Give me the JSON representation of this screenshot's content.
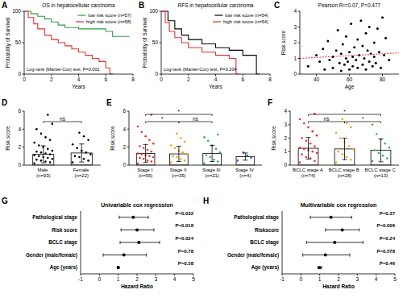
{
  "chart_data": [
    {
      "type": "line",
      "panel_label": "A",
      "title": "OS in hepatocellular carcinoma",
      "x_label": "Years",
      "y_label": "Probability of Survival",
      "line_style": "step",
      "legend": "top-right",
      "annotation": "Log-rank (Mantel-Cox) test, P=0.001",
      "xlim": [
        0,
        8
      ],
      "xticks": [
        0,
        2,
        4,
        6,
        8
      ],
      "ylim": [
        0,
        100
      ],
      "yticks": [
        0,
        50,
        100
      ],
      "series": [
        {
          "name": "low risk score (n=57)",
          "color": "#2f9e44",
          "x": [
            0,
            0.5,
            1,
            1.5,
            2,
            2.5,
            3,
            4,
            5,
            6,
            6.5,
            7.5
          ],
          "values": [
            100,
            96,
            92,
            88,
            83,
            78,
            74,
            72,
            72,
            68,
            60,
            60
          ]
        },
        {
          "name": "high risk score (n=58)",
          "color": "#e03131",
          "x": [
            0,
            0.3,
            0.7,
            1,
            1.5,
            2,
            2.5,
            3,
            3.5,
            4,
            4.5,
            5,
            5.5,
            6,
            6.3
          ],
          "values": [
            100,
            90,
            80,
            72,
            62,
            55,
            50,
            45,
            40,
            35,
            30,
            25,
            20,
            10,
            0
          ]
        }
      ]
    },
    {
      "type": "line",
      "panel_label": "B",
      "title": "RFS in hepatocellular carcinoma",
      "x_label": "Years",
      "y_label": "Probability of Survival",
      "line_style": "step",
      "legend": "top-right",
      "annotation": "Log-rank (Mantel-Cox) test, P=0.204",
      "xlim": [
        0,
        8
      ],
      "xticks": [
        0,
        2,
        4,
        6,
        8
      ],
      "ylim": [
        0,
        100
      ],
      "yticks": [
        0,
        50,
        100
      ],
      "series": [
        {
          "name": "low risk score (n=54)",
          "color": "#000000",
          "x": [
            0,
            0.5,
            1,
            1.5,
            2,
            3,
            4,
            5,
            6,
            7
          ],
          "values": [
            100,
            85,
            72,
            62,
            55,
            48,
            42,
            38,
            30,
            0
          ]
        },
        {
          "name": "high risk score (n=54)",
          "color": "#e03131",
          "x": [
            0,
            0.3,
            0.6,
            1,
            1.5,
            2,
            3,
            4,
            5,
            5.5
          ],
          "values": [
            100,
            82,
            68,
            58,
            50,
            42,
            35,
            30,
            25,
            0
          ]
        }
      ]
    },
    {
      "type": "scatter",
      "panel_label": "C",
      "title": "Pearson R²=0.07, P=0.477",
      "x_label": "Age",
      "y_label": "Risk score",
      "color": "#000000",
      "xlim": [
        30,
        90
      ],
      "xticks": [
        40,
        60,
        80
      ],
      "ylim": [
        0,
        4
      ],
      "yticks": [
        0,
        1,
        2,
        3,
        4
      ],
      "x": [
        35,
        40,
        42,
        44,
        45,
        47,
        48,
        50,
        50,
        52,
        53,
        54,
        55,
        55,
        56,
        57,
        58,
        58,
        59,
        60,
        60,
        61,
        62,
        62,
        63,
        64,
        65,
        65,
        66,
        67,
        68,
        68,
        69,
        70,
        70,
        71,
        72,
        72,
        73,
        74,
        75,
        75,
        76,
        77,
        78,
        79,
        80,
        81,
        82,
        84
      ],
      "values": [
        0.5,
        1.2,
        0.8,
        1.6,
        0.3,
        2.1,
        0.9,
        1.1,
        0.4,
        1.5,
        2.8,
        0.7,
        1.3,
        0.2,
        1.9,
        0.6,
        1.0,
        2.4,
        0.8,
        1.4,
        0.3,
        3.2,
        1.1,
        0.5,
        1.7,
        0.9,
        2.2,
        0.4,
        1.2,
        3.4,
        0.6,
        1.8,
        1.0,
        2.6,
        0.3,
        1.5,
        0.8,
        3.0,
        1.3,
        0.5,
        2.0,
        1.1,
        0.7,
        2.9,
        1.4,
        0.4,
        3.6,
        1.2,
        2.3,
        0.9
      ],
      "trend_line": {
        "x": [
          30,
          90
        ],
        "y": [
          1.0,
          1.35
        ],
        "color": "#e03131"
      }
    },
    {
      "type": "bar",
      "panel_label": "D",
      "y_label": "Risk score",
      "ylim": [
        0,
        6
      ],
      "yticks": [
        0,
        2,
        4,
        6
      ],
      "categories": [
        "Male (n=93)",
        "Female (n=22)"
      ],
      "values": [
        1.2,
        1.35
      ],
      "errors": [
        0.95,
        1.0
      ],
      "colors": [
        "#000000",
        "#000000"
      ],
      "points": [
        [
          0.2,
          0.3,
          0.4,
          0.5,
          0.6,
          0.7,
          0.8,
          0.9,
          1.0,
          1.1,
          1.2,
          1.3,
          1.4,
          1.5,
          1.6,
          1.8,
          2.0,
          2.2,
          2.5,
          2.8,
          3.1,
          3.5,
          4.0,
          4.6,
          5.6
        ],
        [
          0.3,
          0.5,
          0.7,
          0.9,
          1.0,
          1.2,
          1.4,
          1.6,
          1.9,
          2.3,
          2.8,
          3.2,
          3.6
        ]
      ],
      "comparisons": [
        {
          "from": 0,
          "to": 1,
          "label": "ns"
        }
      ]
    },
    {
      "type": "bar",
      "panel_label": "E",
      "y_label": "Risk score",
      "ylim": [
        0,
        6
      ],
      "yticks": [
        0,
        2,
        4,
        6
      ],
      "categories": [
        "Stage I (n=55)",
        "Stage II (n=35)",
        "Stage III (n=21)",
        "Stage IV (n=4)"
      ],
      "values": [
        1.3,
        1.25,
        1.3,
        0.95
      ],
      "errors": [
        1.0,
        0.85,
        0.9,
        0.4
      ],
      "colors": [
        "#e8322a",
        "#f0a020",
        "#33b24a",
        "#2a5fd0"
      ],
      "points": [
        [
          0.2,
          0.4,
          0.5,
          0.7,
          0.8,
          0.9,
          1.0,
          1.1,
          1.2,
          1.3,
          1.5,
          1.7,
          1.9,
          2.1,
          2.4,
          2.8,
          3.2,
          3.7,
          4.3,
          5.6
        ],
        [
          0.3,
          0.5,
          0.7,
          0.9,
          1.0,
          1.2,
          1.4,
          1.6,
          1.9,
          2.2,
          2.6,
          3.0,
          3.5
        ],
        [
          0.2,
          0.4,
          0.6,
          0.9,
          1.1,
          1.4,
          1.8,
          2.2,
          2.7,
          3.1,
          3.4
        ],
        [
          0.5,
          0.8,
          1.1,
          1.4
        ]
      ],
      "comparisons": [
        {
          "from": 0,
          "to": 2,
          "label": "*"
        },
        {
          "from": 0,
          "to": 1,
          "label": "*"
        },
        {
          "from": 1,
          "to": 2,
          "label": "ns"
        }
      ]
    },
    {
      "type": "bar",
      "panel_label": "F",
      "y_label": "Risk score",
      "ylim": [
        0,
        4
      ],
      "yticks": [
        0,
        1,
        2,
        3,
        4
      ],
      "categories": [
        "BCLC stage A (n=74)",
        "BCLC stage B (n=28)",
        "BCLC stage C (n=13)"
      ],
      "values": [
        1.25,
        1.2,
        1.1
      ],
      "errors": [
        0.8,
        0.8,
        0.85
      ],
      "colors": [
        "#e8322a",
        "#f0a020",
        "#33b24a"
      ],
      "points": [
        [
          0.2,
          0.3,
          0.5,
          0.6,
          0.8,
          0.9,
          1.0,
          1.1,
          1.2,
          1.3,
          1.4,
          1.6,
          1.8,
          2.0,
          2.2,
          2.5,
          2.8,
          3.1,
          3.4,
          3.8
        ],
        [
          0.2,
          0.4,
          0.6,
          0.8,
          1.0,
          1.2,
          1.4,
          1.7,
          2.0,
          2.4,
          2.8,
          3.1,
          3.4
        ],
        [
          0.3,
          0.5,
          0.7,
          0.9,
          1.1,
          1.3,
          1.6,
          1.9,
          2.3,
          3.0
        ]
      ],
      "comparisons": [
        {
          "from": 0,
          "to": 2,
          "label": "*"
        },
        {
          "from": 0,
          "to": 1,
          "label": "ns"
        },
        {
          "from": 1,
          "to": 2,
          "label": "*"
        }
      ]
    },
    {
      "type": "forest",
      "panel_label": "G",
      "title": "Univariable cox regression",
      "x_label": "Hazard Ratio",
      "xlim": [
        -1,
        5
      ],
      "xticks": [
        -1,
        0,
        1,
        2,
        3,
        4,
        5
      ],
      "categories": [
        "Pathological stage",
        "Risk score",
        "BCLC stage",
        "Gender (male/female)",
        "Age (years)"
      ],
      "values": [
        1.8,
        2.0,
        2.1,
        1.3,
        1.0
      ],
      "ci_low": [
        1.05,
        1.15,
        1.1,
        0.2,
        0.95
      ],
      "ci_high": [
        2.6,
        2.9,
        3.2,
        2.5,
        1.05
      ],
      "p_labels": [
        "P=0.032",
        "P=0.018",
        "P=0.024",
        "P=0.78",
        "P=0.58"
      ]
    },
    {
      "type": "forest",
      "panel_label": "H",
      "title": "Multivariable cox regression",
      "x_label": "Hazard Ratio",
      "xlim": [
        -1,
        5
      ],
      "xticks": [
        -1,
        0,
        1,
        2,
        3,
        4,
        5
      ],
      "categories": [
        "Pathological stage",
        "Riskscore",
        "BCLC stage",
        "Gender (male/female)",
        "Age (years)"
      ],
      "values": [
        1.6,
        2.2,
        1.8,
        1.3,
        1.0
      ],
      "ci_low": [
        0.5,
        1.3,
        0.3,
        0.1,
        0.9
      ],
      "ci_high": [
        2.7,
        3.1,
        3.3,
        2.6,
        1.1
      ],
      "p_labels": [
        "P=0.37",
        "P=0.006",
        "P=0.24",
        "P=0.578",
        "P=0.46"
      ]
    }
  ]
}
